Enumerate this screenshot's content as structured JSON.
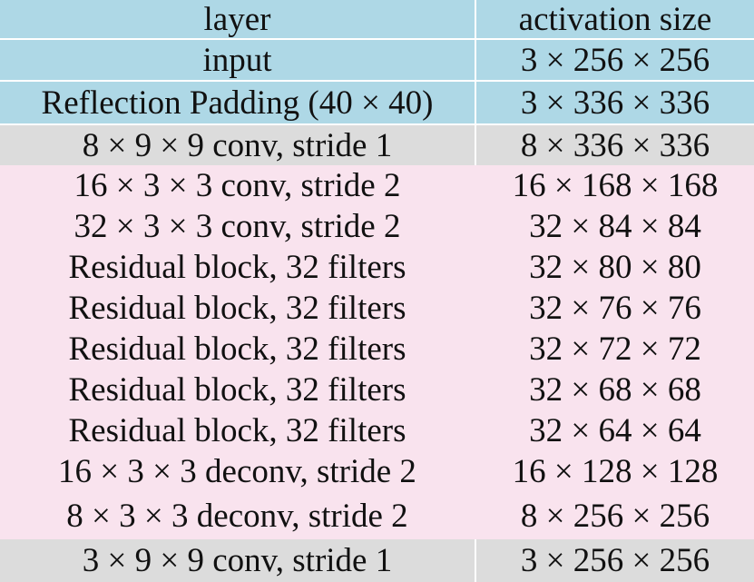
{
  "table": {
    "headers": [
      "layer",
      "activation size"
    ],
    "rows": [
      {
        "layer": "input",
        "size": "3 × 256 × 256",
        "shade": "blue"
      },
      {
        "layer": "Reflection Padding (40 × 40)",
        "size": "3 × 336 × 336",
        "shade": "blue"
      },
      {
        "layer": "8 × 9 × 9 conv, stride 1",
        "size": "8 × 336 × 336",
        "shade": "gray"
      },
      {
        "layer": "16 × 3 × 3 conv, stride 2",
        "size": "16 × 168 × 168",
        "shade": "pink"
      },
      {
        "layer": "32 × 3 × 3 conv, stride 2",
        "size": "32 × 84 × 84",
        "shade": "pink"
      },
      {
        "layer": "Residual block, 32 filters",
        "size": "32 × 80 × 80",
        "shade": "pink"
      },
      {
        "layer": "Residual block, 32 filters",
        "size": "32 × 76 × 76",
        "shade": "pink"
      },
      {
        "layer": "Residual block, 32 filters",
        "size": "32 × 72 × 72",
        "shade": "pink"
      },
      {
        "layer": "Residual block, 32 filters",
        "size": "32 × 68 × 68",
        "shade": "pink"
      },
      {
        "layer": "Residual block, 32 filters",
        "size": "32 × 64 × 64",
        "shade": "pink"
      },
      {
        "layer": "16 × 3 × 3 deconv, stride 2",
        "size": "16 × 128 × 128",
        "shade": "pink"
      },
      {
        "layer": "8 × 3 × 3 deconv, stride 2",
        "size": "8 × 256 × 256",
        "shade": "pink"
      },
      {
        "layer": "3 × 9 × 9 conv, stride 1",
        "size": "3 × 256 × 256",
        "shade": "gray"
      }
    ]
  },
  "colors": {
    "blue": "#aed8e6",
    "gray": "#dcdcdc",
    "pink": "#f9e3ee"
  }
}
